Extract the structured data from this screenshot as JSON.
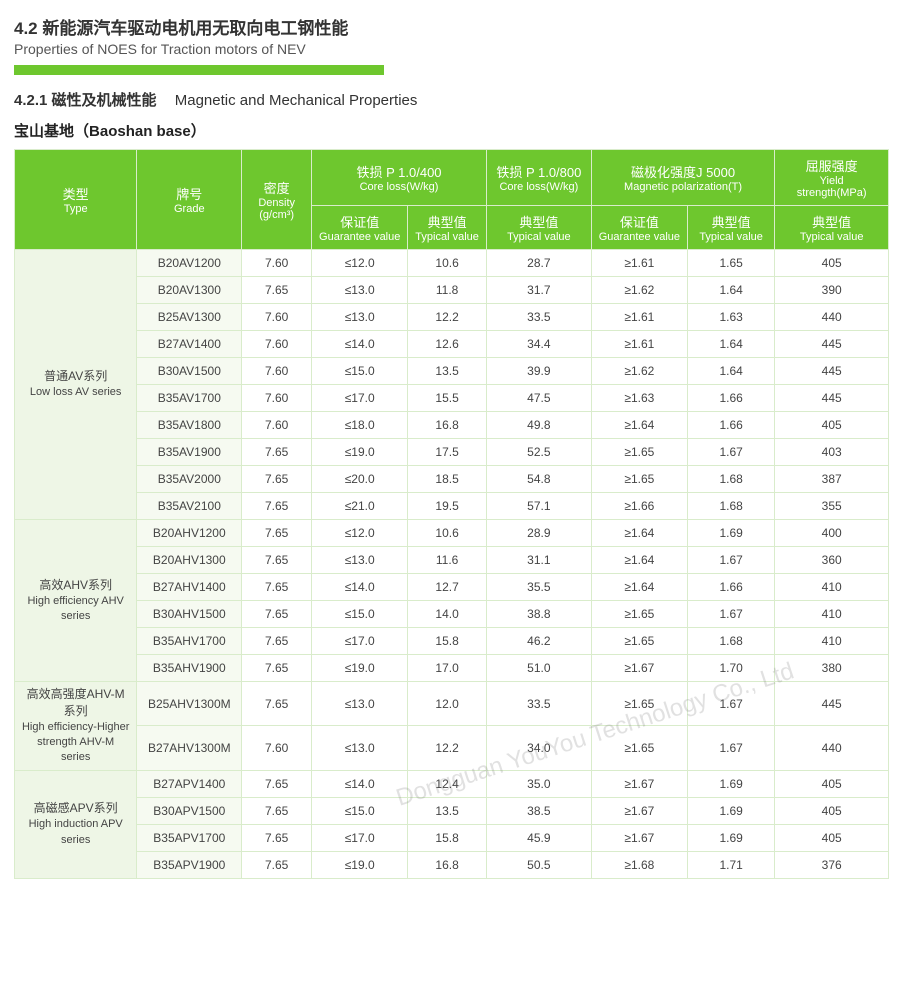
{
  "section": {
    "number": "4.2",
    "title_cn": "新能源汽车驱动电机用无取向电工钢性能",
    "title_en": "Properties of NOES for Traction motors of NEV"
  },
  "subsection": {
    "number": "4.2.1",
    "title_cn": "磁性及机械性能",
    "title_en": "Magnetic and Mechanical Properties"
  },
  "base": {
    "cn": "宝山基地",
    "en": "（Baoshan base）"
  },
  "colors": {
    "header_bg": "#6ec72e",
    "border": "#d9eccb",
    "type_bg": "#eef6e6",
    "grade_bg": "#f6faf1"
  },
  "headers": {
    "type_cn": "类型",
    "type_en": "Type",
    "grade_cn": "牌号",
    "grade_en": "Grade",
    "density_cn": "密度",
    "density_en": "Density",
    "density_unit": "(g/cm³)",
    "coreloss400_cn": "铁损 P 1.0/400",
    "coreloss400_en": "Core loss(W/kg)",
    "coreloss800_cn": "铁损 P 1.0/800",
    "coreloss800_en": "Core loss(W/kg)",
    "magpol_cn": "磁极化强度J 5000",
    "magpol_en": "Magnetic polarization(T)",
    "yield_cn": "屈服强度",
    "yield_en": "Yield",
    "yield_unit": "strength(MPa)",
    "guarantee_cn": "保证值",
    "guarantee_en": "Guarantee value",
    "typical_cn": "典型值",
    "typical_en": "Typical value"
  },
  "col_widths": {
    "type": "14%",
    "grade": "12%",
    "density": "8%",
    "cl400_g": "11%",
    "cl400_t": "9%",
    "cl800_t": "12%",
    "mp_g": "11%",
    "mp_t": "10%",
    "yield": "13%"
  },
  "groups": [
    {
      "type_cn": "普通AV系列",
      "type_en": "Low loss AV series",
      "rows": [
        {
          "grade": "B20AV1200",
          "density": "7.60",
          "cl400_g": "≤12.0",
          "cl400_t": "10.6",
          "cl800_t": "28.7",
          "mp_g": "≥1.61",
          "mp_t": "1.65",
          "yield": "405"
        },
        {
          "grade": "B20AV1300",
          "density": "7.65",
          "cl400_g": "≤13.0",
          "cl400_t": "11.8",
          "cl800_t": "31.7",
          "mp_g": "≥1.62",
          "mp_t": "1.64",
          "yield": "390"
        },
        {
          "grade": "B25AV1300",
          "density": "7.60",
          "cl400_g": "≤13.0",
          "cl400_t": "12.2",
          "cl800_t": "33.5",
          "mp_g": "≥1.61",
          "mp_t": "1.63",
          "yield": "440"
        },
        {
          "grade": "B27AV1400",
          "density": "7.60",
          "cl400_g": "≤14.0",
          "cl400_t": "12.6",
          "cl800_t": "34.4",
          "mp_g": "≥1.61",
          "mp_t": "1.64",
          "yield": "445"
        },
        {
          "grade": "B30AV1500",
          "density": "7.60",
          "cl400_g": "≤15.0",
          "cl400_t": "13.5",
          "cl800_t": "39.9",
          "mp_g": "≥1.62",
          "mp_t": "1.64",
          "yield": "445"
        },
        {
          "grade": "B35AV1700",
          "density": "7.60",
          "cl400_g": "≤17.0",
          "cl400_t": "15.5",
          "cl800_t": "47.5",
          "mp_g": "≥1.63",
          "mp_t": "1.66",
          "yield": "445"
        },
        {
          "grade": "B35AV1800",
          "density": "7.60",
          "cl400_g": "≤18.0",
          "cl400_t": "16.8",
          "cl800_t": "49.8",
          "mp_g": "≥1.64",
          "mp_t": "1.66",
          "yield": "405"
        },
        {
          "grade": "B35AV1900",
          "density": "7.65",
          "cl400_g": "≤19.0",
          "cl400_t": "17.5",
          "cl800_t": "52.5",
          "mp_g": "≥1.65",
          "mp_t": "1.67",
          "yield": "403"
        },
        {
          "grade": "B35AV2000",
          "density": "7.65",
          "cl400_g": "≤20.0",
          "cl400_t": "18.5",
          "cl800_t": "54.8",
          "mp_g": "≥1.65",
          "mp_t": "1.68",
          "yield": "387"
        },
        {
          "grade": "B35AV2100",
          "density": "7.65",
          "cl400_g": "≤21.0",
          "cl400_t": "19.5",
          "cl800_t": "57.1",
          "mp_g": "≥1.66",
          "mp_t": "1.68",
          "yield": "355"
        }
      ]
    },
    {
      "type_cn": "高效AHV系列",
      "type_en": "High efficiency AHV series",
      "rows": [
        {
          "grade": "B20AHV1200",
          "density": "7.65",
          "cl400_g": "≤12.0",
          "cl400_t": "10.6",
          "cl800_t": "28.9",
          "mp_g": "≥1.64",
          "mp_t": "1.69",
          "yield": "400"
        },
        {
          "grade": "B20AHV1300",
          "density": "7.65",
          "cl400_g": "≤13.0",
          "cl400_t": "11.6",
          "cl800_t": "31.1",
          "mp_g": "≥1.64",
          "mp_t": "1.67",
          "yield": "360"
        },
        {
          "grade": "B27AHV1400",
          "density": "7.65",
          "cl400_g": "≤14.0",
          "cl400_t": "12.7",
          "cl800_t": "35.5",
          "mp_g": "≥1.64",
          "mp_t": "1.66",
          "yield": "410"
        },
        {
          "grade": "B30AHV1500",
          "density": "7.65",
          "cl400_g": "≤15.0",
          "cl400_t": "14.0",
          "cl800_t": "38.8",
          "mp_g": "≥1.65",
          "mp_t": "1.67",
          "yield": "410"
        },
        {
          "grade": "B35AHV1700",
          "density": "7.65",
          "cl400_g": "≤17.0",
          "cl400_t": "15.8",
          "cl800_t": "46.2",
          "mp_g": "≥1.65",
          "mp_t": "1.68",
          "yield": "410"
        },
        {
          "grade": "B35AHV1900",
          "density": "7.65",
          "cl400_g": "≤19.0",
          "cl400_t": "17.0",
          "cl800_t": "51.0",
          "mp_g": "≥1.67",
          "mp_t": "1.70",
          "yield": "380"
        }
      ]
    },
    {
      "type_cn": "高效高强度AHV-M系列",
      "type_en": "High efficiency-Higher strength AHV-M series",
      "rows": [
        {
          "grade": "B25AHV1300M",
          "density": "7.65",
          "cl400_g": "≤13.0",
          "cl400_t": "12.0",
          "cl800_t": "33.5",
          "mp_g": "≥1.65",
          "mp_t": "1.67",
          "yield": "445"
        },
        {
          "grade": "B27AHV1300M",
          "density": "7.60",
          "cl400_g": "≤13.0",
          "cl400_t": "12.2",
          "cl800_t": "34.0",
          "mp_g": "≥1.65",
          "mp_t": "1.67",
          "yield": "440"
        }
      ]
    },
    {
      "type_cn": "高磁感APV系列",
      "type_en": "High induction APV series",
      "rows": [
        {
          "grade": "B27APV1400",
          "density": "7.65",
          "cl400_g": "≤14.0",
          "cl400_t": "12.4",
          "cl800_t": "35.0",
          "mp_g": "≥1.67",
          "mp_t": "1.69",
          "yield": "405"
        },
        {
          "grade": "B30APV1500",
          "density": "7.65",
          "cl400_g": "≤15.0",
          "cl400_t": "13.5",
          "cl800_t": "38.5",
          "mp_g": "≥1.67",
          "mp_t": "1.69",
          "yield": "405"
        },
        {
          "grade": "B35APV1700",
          "density": "7.65",
          "cl400_g": "≤17.0",
          "cl400_t": "15.8",
          "cl800_t": "45.9",
          "mp_g": "≥1.67",
          "mp_t": "1.69",
          "yield": "405"
        },
        {
          "grade": "B35APV1900",
          "density": "7.65",
          "cl400_g": "≤19.0",
          "cl400_t": "16.8",
          "cl800_t": "50.5",
          "mp_g": "≥1.68",
          "mp_t": "1.71",
          "yield": "376"
        }
      ]
    }
  ],
  "watermark": "Dongguan YouYou Technology Co., Ltd"
}
